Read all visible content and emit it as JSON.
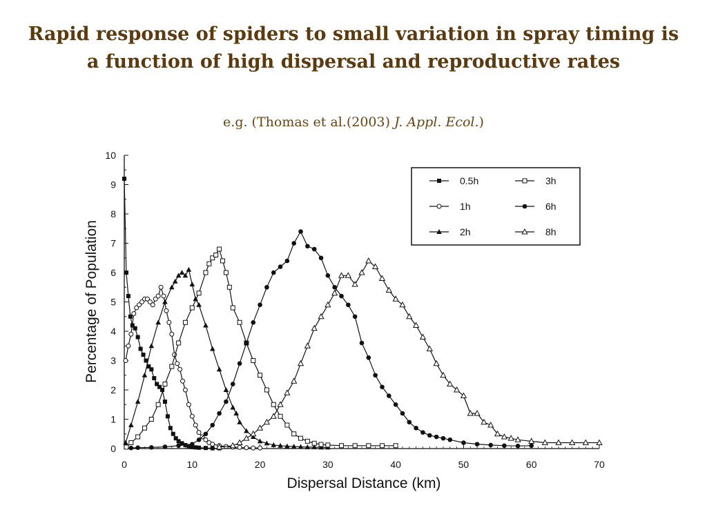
{
  "slide": {
    "title": "Rapid response of spiders to small variation in spray timing is a function of high dispersal and reproductive rates",
    "subtitle_prefix": "e.g. (Thomas et al.(2003) ",
    "subtitle_journal": "J. Appl. Ecol.",
    "subtitle_suffix": ")",
    "title_color": "#5c3a10"
  },
  "chart_data": {
    "type": "line",
    "xlabel": "Dispersal Distance (km)",
    "ylabel": "Percentage of Population",
    "xlim": [
      0,
      70
    ],
    "ylim": [
      0,
      10
    ],
    "x_ticks": [
      0,
      10,
      20,
      30,
      40,
      50,
      60,
      70
    ],
    "y_ticks": [
      0,
      1,
      2,
      3,
      4,
      5,
      6,
      7,
      8,
      9,
      10
    ],
    "grid": false,
    "legend_position": "top-right",
    "series": [
      {
        "name": "0.5h",
        "marker": "filled-square",
        "points": [
          [
            0,
            9.2
          ],
          [
            0.3,
            6.0
          ],
          [
            0.6,
            5.2
          ],
          [
            0.9,
            4.5
          ],
          [
            1.2,
            4.2
          ],
          [
            1.6,
            4.1
          ],
          [
            2.0,
            3.8
          ],
          [
            2.4,
            3.4
          ],
          [
            2.8,
            3.2
          ],
          [
            3.2,
            3.0
          ],
          [
            3.6,
            2.8
          ],
          [
            4.0,
            2.7
          ],
          [
            4.4,
            2.4
          ],
          [
            4.8,
            2.2
          ],
          [
            5.2,
            2.1
          ],
          [
            5.6,
            2.0
          ],
          [
            6.0,
            1.6
          ],
          [
            6.4,
            1.1
          ],
          [
            6.8,
            0.7
          ],
          [
            7.2,
            0.5
          ],
          [
            7.6,
            0.35
          ],
          [
            8.0,
            0.25
          ],
          [
            8.5,
            0.18
          ],
          [
            9.0,
            0.12
          ],
          [
            9.5,
            0.08
          ],
          [
            10,
            0.05
          ],
          [
            10.5,
            0.04
          ],
          [
            11,
            0.03
          ],
          [
            12,
            0.02
          ],
          [
            13,
            0.01
          ],
          [
            14,
            0.01
          ]
        ]
      },
      {
        "name": "1h",
        "marker": "open-circle",
        "points": [
          [
            0.2,
            3.0
          ],
          [
            0.6,
            3.5
          ],
          [
            1.0,
            3.9
          ],
          [
            1.4,
            4.6
          ],
          [
            1.8,
            4.8
          ],
          [
            2.2,
            4.9
          ],
          [
            2.6,
            5.0
          ],
          [
            3.0,
            5.1
          ],
          [
            3.4,
            5.1
          ],
          [
            3.8,
            5.0
          ],
          [
            4.2,
            4.9
          ],
          [
            4.6,
            5.1
          ],
          [
            5.0,
            5.2
          ],
          [
            5.4,
            5.5
          ],
          [
            5.8,
            5.2
          ],
          [
            6.2,
            4.7
          ],
          [
            6.6,
            4.3
          ],
          [
            7.0,
            3.9
          ],
          [
            7.4,
            3.2
          ],
          [
            7.8,
            2.9
          ],
          [
            8.2,
            2.7
          ],
          [
            8.6,
            2.3
          ],
          [
            9.0,
            2.0
          ],
          [
            9.5,
            1.5
          ],
          [
            10,
            1.1
          ],
          [
            10.5,
            0.8
          ],
          [
            11,
            0.55
          ],
          [
            11.5,
            0.4
          ],
          [
            12,
            0.3
          ],
          [
            12.5,
            0.2
          ],
          [
            13,
            0.15
          ],
          [
            14,
            0.1
          ],
          [
            15,
            0.07
          ],
          [
            16,
            0.05
          ],
          [
            17,
            0.04
          ],
          [
            18,
            0.03
          ],
          [
            19,
            0.02
          ],
          [
            20,
            0.02
          ]
        ]
      },
      {
        "name": "2h",
        "marker": "filled-triangle",
        "points": [
          [
            0.2,
            0.2
          ],
          [
            1,
            0.8
          ],
          [
            2,
            1.6
          ],
          [
            3,
            2.5
          ],
          [
            4,
            3.5
          ],
          [
            5,
            4.3
          ],
          [
            6,
            5.0
          ],
          [
            7,
            5.5
          ],
          [
            7.5,
            5.7
          ],
          [
            8,
            5.9
          ],
          [
            8.5,
            6.0
          ],
          [
            9,
            5.9
          ],
          [
            9.5,
            6.1
          ],
          [
            10,
            5.6
          ],
          [
            10.5,
            5.1
          ],
          [
            11,
            4.9
          ],
          [
            12,
            4.2
          ],
          [
            13,
            3.4
          ],
          [
            14,
            2.7
          ],
          [
            15,
            2.0
          ],
          [
            16,
            1.4
          ],
          [
            16.5,
            1.2
          ],
          [
            17,
            0.9
          ],
          [
            18,
            0.6
          ],
          [
            19,
            0.4
          ],
          [
            20,
            0.25
          ],
          [
            21,
            0.18
          ],
          [
            22,
            0.12
          ],
          [
            23,
            0.1
          ],
          [
            24,
            0.08
          ],
          [
            25,
            0.07
          ],
          [
            26,
            0.06
          ],
          [
            27,
            0.05
          ],
          [
            28,
            0.05
          ],
          [
            29,
            0.04
          ],
          [
            30,
            0.04
          ]
        ]
      },
      {
        "name": "3h",
        "marker": "open-square",
        "points": [
          [
            0.3,
            0.05
          ],
          [
            1,
            0.2
          ],
          [
            2,
            0.4
          ],
          [
            3,
            0.7
          ],
          [
            4,
            1.0
          ],
          [
            5,
            1.5
          ],
          [
            6,
            2.2
          ],
          [
            7,
            2.8
          ],
          [
            8,
            3.6
          ],
          [
            9,
            4.3
          ],
          [
            10,
            4.8
          ],
          [
            11,
            5.3
          ],
          [
            12,
            6.0
          ],
          [
            12.5,
            6.3
          ],
          [
            13,
            6.5
          ],
          [
            13.5,
            6.6
          ],
          [
            14,
            6.8
          ],
          [
            14.5,
            6.4
          ],
          [
            15,
            6.0
          ],
          [
            15.5,
            5.5
          ],
          [
            16,
            4.8
          ],
          [
            17,
            4.3
          ],
          [
            18,
            3.6
          ],
          [
            19,
            3.0
          ],
          [
            20,
            2.5
          ],
          [
            21,
            2.0
          ],
          [
            22,
            1.5
          ],
          [
            23,
            1.1
          ],
          [
            24,
            0.8
          ],
          [
            25,
            0.5
          ],
          [
            26,
            0.35
          ],
          [
            27,
            0.25
          ],
          [
            28,
            0.18
          ],
          [
            29,
            0.14
          ],
          [
            30,
            0.12
          ],
          [
            32,
            0.1
          ],
          [
            34,
            0.1
          ],
          [
            36,
            0.1
          ],
          [
            38,
            0.1
          ],
          [
            40,
            0.1
          ]
        ]
      },
      {
        "name": "6h",
        "marker": "filled-circle",
        "points": [
          [
            1,
            0.02
          ],
          [
            2,
            0.03
          ],
          [
            4,
            0.04
          ],
          [
            6,
            0.06
          ],
          [
            8,
            0.1
          ],
          [
            10,
            0.15
          ],
          [
            11,
            0.3
          ],
          [
            12,
            0.5
          ],
          [
            13,
            0.8
          ],
          [
            14,
            1.2
          ],
          [
            15,
            1.6
          ],
          [
            16,
            2.2
          ],
          [
            17,
            2.9
          ],
          [
            18,
            3.6
          ],
          [
            19,
            4.3
          ],
          [
            20,
            4.9
          ],
          [
            21,
            5.5
          ],
          [
            22,
            6.0
          ],
          [
            23,
            6.2
          ],
          [
            24,
            6.4
          ],
          [
            25,
            7.0
          ],
          [
            26,
            7.4
          ],
          [
            27,
            6.9
          ],
          [
            28,
            6.8
          ],
          [
            29,
            6.5
          ],
          [
            30,
            5.9
          ],
          [
            31,
            5.5
          ],
          [
            32,
            5.2
          ],
          [
            33,
            4.9
          ],
          [
            34,
            4.5
          ],
          [
            35,
            3.6
          ],
          [
            36,
            3.1
          ],
          [
            37,
            2.5
          ],
          [
            38,
            2.1
          ],
          [
            39,
            1.8
          ],
          [
            40,
            1.5
          ],
          [
            41,
            1.2
          ],
          [
            42,
            0.9
          ],
          [
            43,
            0.7
          ],
          [
            44,
            0.55
          ],
          [
            45,
            0.45
          ],
          [
            46,
            0.4
          ],
          [
            47,
            0.35
          ],
          [
            48,
            0.3
          ],
          [
            50,
            0.2
          ],
          [
            52,
            0.15
          ],
          [
            54,
            0.12
          ],
          [
            56,
            0.1
          ],
          [
            58,
            0.09
          ],
          [
            60,
            0.1
          ]
        ]
      },
      {
        "name": "8h",
        "marker": "open-triangle",
        "points": [
          [
            14,
            0.05
          ],
          [
            16,
            0.1
          ],
          [
            17,
            0.2
          ],
          [
            18,
            0.35
          ],
          [
            19,
            0.5
          ],
          [
            20,
            0.7
          ],
          [
            21,
            0.9
          ],
          [
            22,
            1.1
          ],
          [
            23,
            1.5
          ],
          [
            24,
            1.9
          ],
          [
            25,
            2.3
          ],
          [
            26,
            2.9
          ],
          [
            27,
            3.5
          ],
          [
            28,
            4.1
          ],
          [
            29,
            4.5
          ],
          [
            30,
            4.9
          ],
          [
            31,
            5.3
          ],
          [
            32,
            5.9
          ],
          [
            33,
            5.9
          ],
          [
            34,
            5.6
          ],
          [
            35,
            6.0
          ],
          [
            36,
            6.4
          ],
          [
            37,
            6.2
          ],
          [
            38,
            5.8
          ],
          [
            39,
            5.4
          ],
          [
            40,
            5.1
          ],
          [
            41,
            4.9
          ],
          [
            42,
            4.5
          ],
          [
            43,
            4.2
          ],
          [
            44,
            3.8
          ],
          [
            45,
            3.4
          ],
          [
            46,
            2.9
          ],
          [
            47,
            2.5
          ],
          [
            48,
            2.2
          ],
          [
            49,
            2.0
          ],
          [
            50,
            1.8
          ],
          [
            51,
            1.2
          ],
          [
            52,
            1.2
          ],
          [
            53,
            0.9
          ],
          [
            54,
            0.8
          ],
          [
            55,
            0.5
          ],
          [
            56,
            0.4
          ],
          [
            57,
            0.35
          ],
          [
            58,
            0.3
          ],
          [
            60,
            0.25
          ],
          [
            62,
            0.2
          ],
          [
            64,
            0.2
          ],
          [
            66,
            0.2
          ],
          [
            68,
            0.2
          ],
          [
            70,
            0.2
          ]
        ]
      }
    ]
  }
}
